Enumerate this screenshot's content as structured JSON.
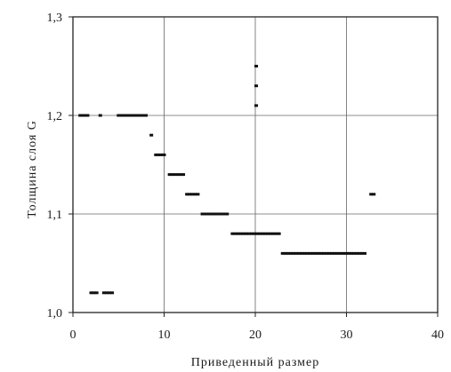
{
  "chart_data": {
    "type": "scatter",
    "title": "",
    "xlabel": "Приведенный размер",
    "ylabel": "Толщина слоя G",
    "xlim": [
      0,
      40
    ],
    "ylim": [
      1.0,
      1.3
    ],
    "x_ticks": [
      0,
      10,
      20,
      30,
      40
    ],
    "x_tick_labels": [
      "0",
      "10",
      "20",
      "30",
      "40"
    ],
    "y_ticks": [
      1.0,
      1.1,
      1.2,
      1.3
    ],
    "y_tick_labels": [
      "1,0",
      "1,1",
      "1,2",
      "1,3"
    ],
    "grid": true,
    "series": [
      {
        "marker_color": "#111111",
        "x": [
          0.8,
          1.0,
          1.2,
          1.4,
          1.6,
          3.0,
          5.0,
          5.3,
          5.6,
          5.9,
          6.2,
          6.5,
          6.8,
          7.1,
          7.4,
          7.7,
          8.0,
          2.0,
          2.3,
          2.6,
          3.4,
          3.7,
          4.0,
          4.3,
          8.6,
          9.1,
          9.4,
          9.7,
          10.0,
          10.6,
          10.9,
          11.2,
          11.5,
          11.8,
          12.1,
          12.5,
          12.8,
          13.1,
          13.4,
          13.7,
          14.2,
          14.5,
          14.8,
          15.1,
          15.4,
          15.7,
          16.0,
          16.3,
          16.6,
          16.9,
          17.5,
          17.8,
          18.1,
          18.4,
          18.7,
          19.0,
          19.3,
          19.6,
          19.9,
          20.2,
          20.5,
          20.8,
          21.1,
          21.4,
          21.7,
          22.0,
          22.3,
          22.6,
          23.0,
          23.3,
          23.6,
          23.9,
          24.2,
          24.5,
          24.8,
          25.1,
          25.4,
          25.7,
          26.0,
          26.3,
          26.6,
          26.9,
          27.2,
          27.5,
          27.8,
          28.1,
          28.4,
          28.7,
          29.0,
          29.3,
          29.6,
          29.9,
          30.2,
          30.5,
          30.8,
          31.1,
          31.4,
          31.7,
          32.0,
          32.7,
          33.0,
          20.1,
          20.1,
          20.1
        ],
        "y": [
          1.2,
          1.2,
          1.2,
          1.2,
          1.2,
          1.2,
          1.2,
          1.2,
          1.2,
          1.2,
          1.2,
          1.2,
          1.2,
          1.2,
          1.2,
          1.2,
          1.2,
          1.02,
          1.02,
          1.02,
          1.02,
          1.02,
          1.02,
          1.02,
          1.18,
          1.16,
          1.16,
          1.16,
          1.16,
          1.14,
          1.14,
          1.14,
          1.14,
          1.14,
          1.14,
          1.12,
          1.12,
          1.12,
          1.12,
          1.12,
          1.1,
          1.1,
          1.1,
          1.1,
          1.1,
          1.1,
          1.1,
          1.1,
          1.1,
          1.1,
          1.08,
          1.08,
          1.08,
          1.08,
          1.08,
          1.08,
          1.08,
          1.08,
          1.08,
          1.08,
          1.08,
          1.08,
          1.08,
          1.08,
          1.08,
          1.08,
          1.08,
          1.08,
          1.06,
          1.06,
          1.06,
          1.06,
          1.06,
          1.06,
          1.06,
          1.06,
          1.06,
          1.06,
          1.06,
          1.06,
          1.06,
          1.06,
          1.06,
          1.06,
          1.06,
          1.06,
          1.06,
          1.06,
          1.06,
          1.06,
          1.06,
          1.06,
          1.06,
          1.06,
          1.06,
          1.06,
          1.06,
          1.06,
          1.06,
          1.12,
          1.12,
          1.25,
          1.23,
          1.21
        ]
      }
    ]
  }
}
